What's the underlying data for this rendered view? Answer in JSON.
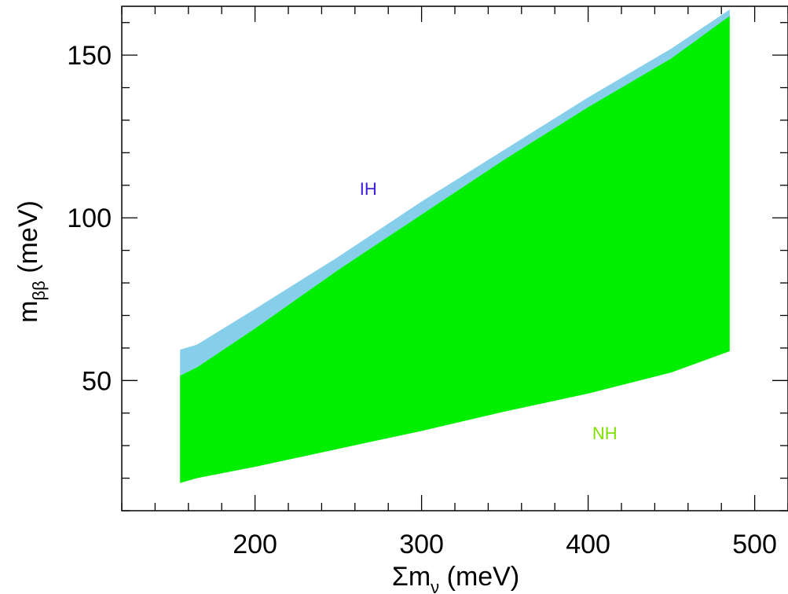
{
  "chart_data": {
    "type": "area",
    "xlabel_main": "Σm",
    "xlabel_sub": "ν",
    "xlabel_unit": " (meV)",
    "ylabel_main": "m",
    "ylabel_sub": "ββ",
    "ylabel_unit": " (meV)",
    "xlim": [
      120,
      520
    ],
    "ylim": [
      10,
      165
    ],
    "x_ticks": [
      200,
      300,
      400,
      500
    ],
    "x_tick_labels": [
      "200",
      "300",
      "400",
      "500"
    ],
    "x_minor_step": 20,
    "y_ticks": [
      50,
      100,
      150
    ],
    "y_tick_labels": [
      "50",
      "100",
      "150"
    ],
    "y_minor_step": 10,
    "grid": false,
    "series": [
      {
        "label": "IH",
        "color": "#87ceeb",
        "label_color": "#3a1de0",
        "label_pos": [
          268,
          107
        ],
        "x": [
          155,
          165,
          200,
          250,
          300,
          350,
          400,
          450,
          485
        ],
        "upper": [
          59.5,
          61,
          72,
          88,
          105,
          121,
          137,
          152,
          164
        ],
        "lower": [
          51.5,
          54,
          66,
          84,
          101,
          118,
          134,
          149,
          161
        ]
      },
      {
        "label": "NH",
        "color": "#00ee00",
        "label_color": "#7ee000",
        "label_pos": [
          410,
          32
        ],
        "x": [
          155,
          165,
          200,
          250,
          300,
          350,
          400,
          450,
          485
        ],
        "upper": [
          51.5,
          54,
          66,
          84,
          101,
          118,
          134,
          149,
          162
        ],
        "lower": [
          18.5,
          20,
          23.5,
          29,
          34.5,
          40.5,
          46,
          52.5,
          59
        ]
      }
    ]
  }
}
